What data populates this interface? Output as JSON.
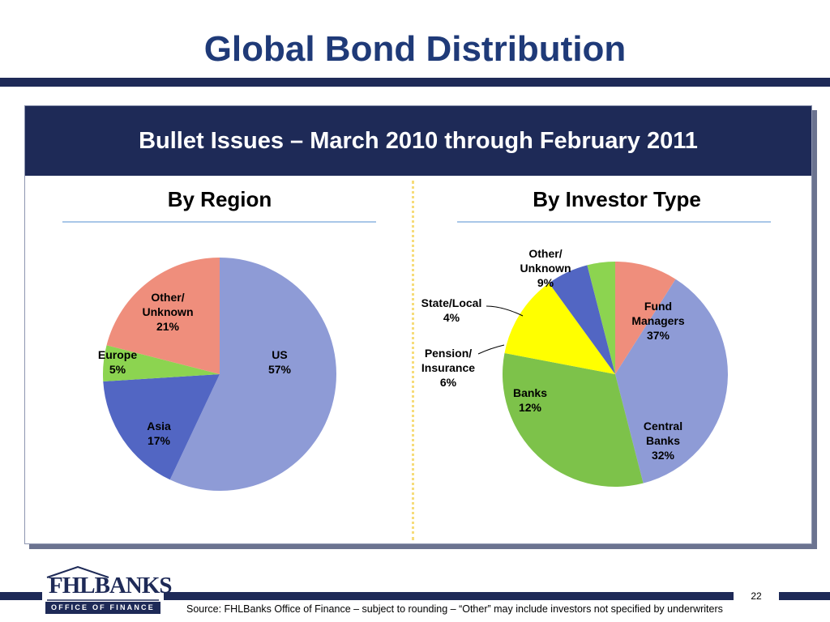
{
  "slide": {
    "title": "Global Bond Distribution",
    "panel_header": "Bullet Issues – March 2010 through February 2011",
    "source_note": "Source: FHLBanks Office of Finance – subject to rounding – “Other” may include investors not specified by underwriters",
    "page_number": "22"
  },
  "logo": {
    "wordmark": "FHLBANKS",
    "subtitle": "OFFICE OF FINANCE"
  },
  "colors": {
    "navy": "#1e2a57",
    "title_blue": "#1f3a78"
  },
  "chart_data": [
    {
      "type": "pie",
      "title": "By Region",
      "slices": [
        {
          "name": "US",
          "value": 57,
          "label": "57%",
          "color": "#8e9bd6"
        },
        {
          "name": "Asia",
          "value": 17,
          "label": "17%",
          "color": "#5266c3"
        },
        {
          "name": "Europe",
          "value": 5,
          "label": "5%",
          "color": "#8cd450"
        },
        {
          "name": "Other/ Unknown",
          "value": 21,
          "label": "21%",
          "color": "#ef8e7c"
        }
      ]
    },
    {
      "type": "pie",
      "title": "By Investor Type",
      "slices": [
        {
          "name": "Fund Managers",
          "value": 37,
          "label": "37%",
          "color": "#8e9bd6"
        },
        {
          "name": "Central Banks",
          "value": 32,
          "label": "32%",
          "color": "#7dc24a"
        },
        {
          "name": "Banks",
          "value": 12,
          "label": "12%",
          "color": "#ffff00"
        },
        {
          "name": "Pension/ Insurance",
          "value": 6,
          "label": "6%",
          "color": "#5266c3"
        },
        {
          "name": "State/Local",
          "value": 4,
          "label": "4%",
          "color": "#8cd450"
        },
        {
          "name": "Other/ Unknown",
          "value": 9,
          "label": "9%",
          "color": "#ef8e7c"
        }
      ]
    }
  ]
}
